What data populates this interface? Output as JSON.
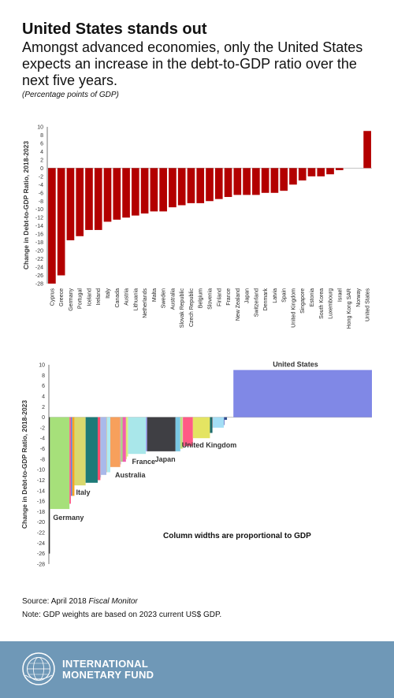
{
  "header": {
    "title": "United States stands out",
    "subtitle": "Amongst advanced economies, only the United States expects an increase in the debt-to-GDP ratio over the next five years.",
    "units": "(Percentage points of GDP)"
  },
  "source": {
    "prefix": "Source: April 2018 ",
    "publication": "Fiscal Monitor",
    "note": "Note: GDP weights are based on 2023 current US$ GDP."
  },
  "footer": {
    "org_line1": "INTERNATIONAL",
    "org_line2": "MONETARY FUND"
  },
  "chart_data": [
    {
      "type": "bar",
      "ylabel": "Change in Debt-to-GDP Ratio, 2018-2023",
      "ylim": [
        -28,
        10
      ],
      "yticks": [
        10,
        8,
        6,
        4,
        2,
        0,
        -2,
        -4,
        -6,
        -8,
        -10,
        -12,
        -14,
        -16,
        -18,
        -20,
        -22,
        -24,
        -26,
        -28
      ],
      "bar_color": "#b30000",
      "categories": [
        "Cyprus",
        "Greece",
        "Germany",
        "Portugal",
        "Iceland",
        "Ireland",
        "Italy",
        "Canada",
        "Austria",
        "Lithuania",
        "Netherlands",
        "Malta",
        "Sweden",
        "Australia",
        "Slovak Republic",
        "Czech Republic",
        "Belgium",
        "Slovenia",
        "Finland",
        "France",
        "New Zealand",
        "Japan",
        "Switzerland",
        "Denmark",
        "Latvia",
        "Spain",
        "United Kingdom",
        "Singapore",
        "Estonia",
        "South Korea",
        "Luxembourg",
        "Israel",
        "Hong Kong SAR",
        "Norway",
        "United States"
      ],
      "values": [
        -28,
        -26,
        -17.5,
        -16.5,
        -15,
        -15,
        -13,
        -12.5,
        -12,
        -11.5,
        -11,
        -10.5,
        -10.5,
        -9.5,
        -9,
        -8.5,
        -8.5,
        -8,
        -7.5,
        -7,
        -6.5,
        -6.5,
        -6.5,
        -6,
        -6,
        -5.5,
        -4,
        -3,
        -2,
        -2,
        -1.5,
        -0.5,
        0,
        0,
        9
      ]
    },
    {
      "type": "bar",
      "subtype": "variable-width",
      "ylabel": "Change in Debt-to-GDP Ratio, 2018-2023",
      "ylim": [
        -28,
        10
      ],
      "yticks": [
        10,
        8,
        6,
        4,
        2,
        0,
        -2,
        -4,
        -6,
        -8,
        -10,
        -12,
        -14,
        -16,
        -18,
        -20,
        -22,
        -24,
        -26,
        -28
      ],
      "annotation": "Column widths are proportional to GDP",
      "series": [
        {
          "label": "",
          "value": -26,
          "weight": 0.6,
          "color": "#2f2f2f"
        },
        {
          "label": "Germany",
          "value": -17.5,
          "weight": 11,
          "color": "#a6e07a"
        },
        {
          "label": "",
          "value": -16.5,
          "weight": 0.8,
          "color": "#ff5a85"
        },
        {
          "label": "",
          "value": -15,
          "weight": 0.8,
          "color": "#6a7fd8"
        },
        {
          "label": "",
          "value": -15,
          "weight": 1.2,
          "color": "#f5a623"
        },
        {
          "label": "Italy",
          "value": -13,
          "weight": 6.3,
          "color": "#d9d96e"
        },
        {
          "label": "",
          "value": -12.5,
          "weight": 6.8,
          "color": "#1d7a78"
        },
        {
          "label": "",
          "value": -12,
          "weight": 1.5,
          "color": "#ff4d6d"
        },
        {
          "label": "",
          "value": -11.5,
          "weight": 0.3,
          "color": "#98c8ea"
        },
        {
          "label": "",
          "value": -11,
          "weight": 3.1,
          "color": "#a9b9ea"
        },
        {
          "label": "",
          "value": -10.5,
          "weight": 0.2,
          "color": "#f3a86f"
        },
        {
          "label": "",
          "value": -10.5,
          "weight": 2.0,
          "color": "#aeeaf2"
        },
        {
          "label": "Australia",
          "value": -9.5,
          "weight": 5.6,
          "color": "#f7a05c"
        },
        {
          "label": "",
          "value": -9,
          "weight": 0.4,
          "color": "#c99ad8"
        },
        {
          "label": "",
          "value": -8.5,
          "weight": 0.9,
          "color": "#a6e07a"
        },
        {
          "label": "",
          "value": -8.5,
          "weight": 1.9,
          "color": "#ef5db0"
        },
        {
          "label": "",
          "value": -8,
          "weight": 0.2,
          "color": "#f5c542"
        },
        {
          "label": "",
          "value": -7.5,
          "weight": 1.0,
          "color": "#d8ee85"
        },
        {
          "label": "France",
          "value": -7,
          "weight": 10,
          "color": "#a9e7ea"
        },
        {
          "label": "",
          "value": -6.5,
          "weight": 0.7,
          "color": "#9aa3f5"
        },
        {
          "label": "Japan",
          "value": -6.5,
          "weight": 16,
          "color": "#3f3f44"
        },
        {
          "label": "",
          "value": -6.5,
          "weight": 2.7,
          "color": "#7ac8e4"
        },
        {
          "label": "",
          "value": -6,
          "weight": 1.3,
          "color": "#bfe27a"
        },
        {
          "label": "",
          "value": -6,
          "weight": 0.2,
          "color": "#f2b8e0"
        },
        {
          "label": "",
          "value": -5.5,
          "weight": 5.6,
          "color": "#ff5a85"
        },
        {
          "label": "United Kingdom",
          "value": -4,
          "weight": 9.6,
          "color": "#e4e462"
        },
        {
          "label": "",
          "value": -3,
          "weight": 1.4,
          "color": "#1d6b6b"
        },
        {
          "label": "",
          "value": -2,
          "weight": 0.2,
          "color": "#f3a0a0"
        },
        {
          "label": "",
          "value": -2,
          "weight": 6.2,
          "color": "#a4def5"
        },
        {
          "label": "",
          "value": -1.5,
          "weight": 0.3,
          "color": "#5c6bc0"
        },
        {
          "label": "",
          "value": -0.5,
          "weight": 1.5,
          "color": "#2e4c8c"
        },
        {
          "label": "",
          "value": 0,
          "weight": 2.0,
          "color": "#9aa3f5"
        },
        {
          "label": "",
          "value": 0,
          "weight": 1.6,
          "color": "#ff8c42"
        },
        {
          "label": "United States",
          "value": 9,
          "weight": 78,
          "color": "#8088e6"
        }
      ]
    }
  ]
}
